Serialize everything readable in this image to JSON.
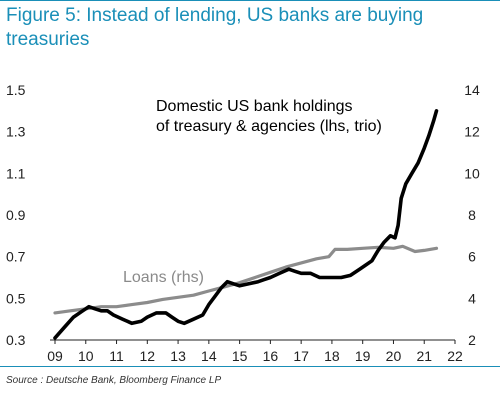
{
  "chart_data": {
    "type": "line",
    "title": "Figure 5: Instead of lending, US banks are buying treasuries",
    "source": "Source : Deutsche Bank, Bloomberg Finance LP",
    "x_ticks": [
      "09",
      "10",
      "11",
      "12",
      "13",
      "14",
      "15",
      "16",
      "17",
      "18",
      "19",
      "20",
      "21",
      "22"
    ],
    "xlim": [
      2009,
      2022
    ],
    "left_axis": {
      "ticks": [
        "0.3",
        "0.5",
        "0.7",
        "0.9",
        "1.1",
        "1.3",
        "1.5"
      ],
      "ylim": [
        0.3,
        1.5
      ]
    },
    "right_axis": {
      "ticks": [
        "2",
        "4",
        "6",
        "8",
        "10",
        "12",
        "14"
      ],
      "ylim": [
        2,
        14
      ]
    },
    "grid": false,
    "series": [
      {
        "name": "Domestic US bank holdings of treasury & agencies (lhs, trio)",
        "label_lines": [
          "Domestic US bank holdings",
          "of treasury & agencies (lhs, trio)"
        ],
        "axis": "left",
        "color": "#000000",
        "points": [
          [
            2009.0,
            0.31
          ],
          [
            2009.3,
            0.36
          ],
          [
            2009.6,
            0.41
          ],
          [
            2009.9,
            0.44
          ],
          [
            2010.1,
            0.46
          ],
          [
            2010.3,
            0.45
          ],
          [
            2010.5,
            0.44
          ],
          [
            2010.7,
            0.44
          ],
          [
            2010.9,
            0.42
          ],
          [
            2011.2,
            0.4
          ],
          [
            2011.5,
            0.38
          ],
          [
            2011.8,
            0.39
          ],
          [
            2012.0,
            0.41
          ],
          [
            2012.3,
            0.43
          ],
          [
            2012.6,
            0.43
          ],
          [
            2012.8,
            0.41
          ],
          [
            2013.0,
            0.39
          ],
          [
            2013.2,
            0.38
          ],
          [
            2013.5,
            0.4
          ],
          [
            2013.8,
            0.42
          ],
          [
            2014.0,
            0.47
          ],
          [
            2014.2,
            0.51
          ],
          [
            2014.4,
            0.55
          ],
          [
            2014.6,
            0.58
          ],
          [
            2014.8,
            0.57
          ],
          [
            2015.0,
            0.56
          ],
          [
            2015.3,
            0.57
          ],
          [
            2015.6,
            0.58
          ],
          [
            2015.8,
            0.59
          ],
          [
            2016.0,
            0.6
          ],
          [
            2016.3,
            0.62
          ],
          [
            2016.6,
            0.64
          ],
          [
            2016.8,
            0.63
          ],
          [
            2017.0,
            0.62
          ],
          [
            2017.3,
            0.62
          ],
          [
            2017.6,
            0.6
          ],
          [
            2017.8,
            0.6
          ],
          [
            2018.0,
            0.6
          ],
          [
            2018.3,
            0.6
          ],
          [
            2018.6,
            0.61
          ],
          [
            2018.9,
            0.64
          ],
          [
            2019.1,
            0.66
          ],
          [
            2019.3,
            0.68
          ],
          [
            2019.5,
            0.73
          ],
          [
            2019.7,
            0.77
          ],
          [
            2019.9,
            0.8
          ],
          [
            2020.05,
            0.79
          ],
          [
            2020.15,
            0.85
          ],
          [
            2020.25,
            0.98
          ],
          [
            2020.4,
            1.05
          ],
          [
            2020.6,
            1.1
          ],
          [
            2020.8,
            1.15
          ],
          [
            2021.0,
            1.22
          ],
          [
            2021.15,
            1.28
          ],
          [
            2021.3,
            1.35
          ],
          [
            2021.4,
            1.4
          ]
        ]
      },
      {
        "name": "Loans (rhs)",
        "axis": "right",
        "color": "#8c8c8c",
        "points": [
          [
            2009.0,
            3.3
          ],
          [
            2009.5,
            3.4
          ],
          [
            2010.0,
            3.5
          ],
          [
            2010.5,
            3.6
          ],
          [
            2011.0,
            3.6
          ],
          [
            2011.5,
            3.7
          ],
          [
            2012.0,
            3.8
          ],
          [
            2012.5,
            3.95
          ],
          [
            2013.0,
            4.05
          ],
          [
            2013.5,
            4.15
          ],
          [
            2014.0,
            4.35
          ],
          [
            2014.5,
            4.55
          ],
          [
            2015.0,
            4.75
          ],
          [
            2015.5,
            5.0
          ],
          [
            2016.0,
            5.25
          ],
          [
            2016.5,
            5.5
          ],
          [
            2017.0,
            5.7
          ],
          [
            2017.5,
            5.9
          ],
          [
            2017.9,
            6.0
          ],
          [
            2018.1,
            6.35
          ],
          [
            2018.5,
            6.35
          ],
          [
            2019.0,
            6.4
          ],
          [
            2019.5,
            6.45
          ],
          [
            2020.0,
            6.4
          ],
          [
            2020.3,
            6.5
          ],
          [
            2020.7,
            6.25
          ],
          [
            2021.0,
            6.3
          ],
          [
            2021.4,
            6.4
          ]
        ]
      }
    ]
  }
}
